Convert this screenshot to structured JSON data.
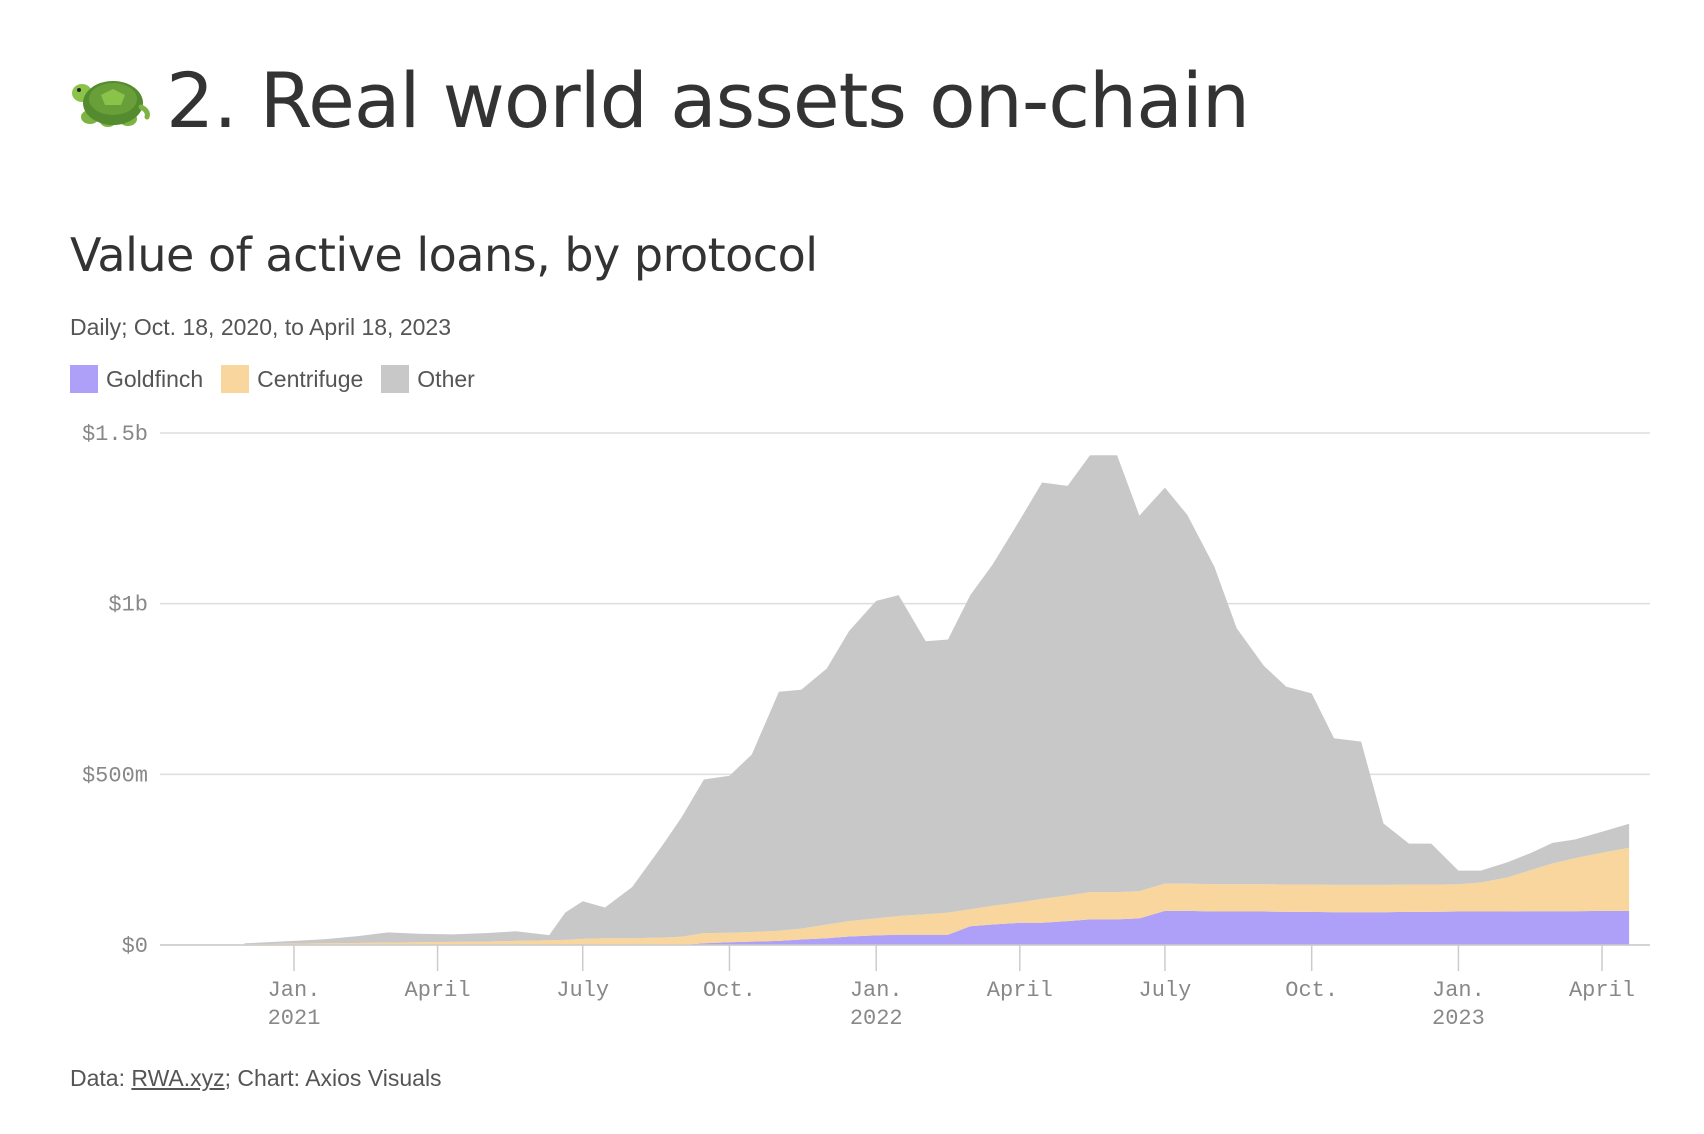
{
  "headline": {
    "emoji": "🐢",
    "text": "2. Real world assets on-chain"
  },
  "chart_data": {
    "type": "area",
    "stacked": true,
    "title": "Value of active loans, by protocol",
    "subtitle": "Daily; Oct. 18, 2020, to April 18, 2023",
    "ylim": [
      0,
      1500000000
    ],
    "y_ticks": [
      {
        "value": 0,
        "label": "$0"
      },
      {
        "value": 500000000,
        "label": "$500m"
      },
      {
        "value": 1000000000,
        "label": "$1b"
      },
      {
        "value": 1500000000,
        "label": "$1.5b"
      }
    ],
    "x_ticks": [
      {
        "date": "2021-01-01",
        "label": "Jan.",
        "label2": "2021"
      },
      {
        "date": "2021-04-01",
        "label": "April",
        "label2": ""
      },
      {
        "date": "2021-07-01",
        "label": "July",
        "label2": ""
      },
      {
        "date": "2021-10-01",
        "label": "Oct.",
        "label2": ""
      },
      {
        "date": "2022-01-01",
        "label": "Jan.",
        "label2": "2022"
      },
      {
        "date": "2022-04-01",
        "label": "April",
        "label2": ""
      },
      {
        "date": "2022-07-01",
        "label": "July",
        "label2": ""
      },
      {
        "date": "2022-10-01",
        "label": "Oct.",
        "label2": ""
      },
      {
        "date": "2023-01-01",
        "label": "Jan.",
        "label2": "2023"
      },
      {
        "date": "2023-04-01",
        "label": "April",
        "label2": ""
      }
    ],
    "x": [
      "2020-12-01",
      "2020-12-15",
      "2021-01-01",
      "2021-01-20",
      "2021-02-10",
      "2021-03-01",
      "2021-03-20",
      "2021-04-10",
      "2021-05-01",
      "2021-05-20",
      "2021-06-10",
      "2021-06-20",
      "2021-07-01",
      "2021-07-15",
      "2021-08-01",
      "2021-08-20",
      "2021-09-01",
      "2021-09-15",
      "2021-10-01",
      "2021-10-15",
      "2021-11-01",
      "2021-11-15",
      "2021-12-01",
      "2021-12-15",
      "2022-01-01",
      "2022-01-15",
      "2022-02-01",
      "2022-02-15",
      "2022-03-01",
      "2022-03-15",
      "2022-04-01",
      "2022-04-15",
      "2022-05-01",
      "2022-05-15",
      "2022-06-01",
      "2022-06-15",
      "2022-07-01",
      "2022-07-15",
      "2022-08-01",
      "2022-08-15",
      "2022-09-01",
      "2022-09-15",
      "2022-10-01",
      "2022-10-15",
      "2022-11-01",
      "2022-11-15",
      "2022-12-01",
      "2022-12-15",
      "2023-01-01",
      "2023-01-15",
      "2023-02-01",
      "2023-02-15",
      "2023-03-01",
      "2023-03-15",
      "2023-04-01",
      "2023-04-18"
    ],
    "series": [
      {
        "name": "Goldfinch",
        "color": "#ae9ff8",
        "values": [
          0,
          0,
          0,
          0,
          0,
          0,
          0,
          0,
          0,
          0,
          0,
          0,
          0,
          0,
          0,
          0,
          0,
          5000000,
          8000000,
          10000000,
          12000000,
          16000000,
          20000000,
          25000000,
          28000000,
          30000000,
          30000000,
          30000000,
          55000000,
          60000000,
          65000000,
          65000000,
          70000000,
          75000000,
          75000000,
          78000000,
          100000000,
          100000000,
          98000000,
          98000000,
          98000000,
          97000000,
          97000000,
          96000000,
          96000000,
          96000000,
          97000000,
          97000000,
          98000000,
          98000000,
          98000000,
          99000000,
          99000000,
          99000000,
          100000000,
          100000000
        ]
      },
      {
        "name": "Centrifuge",
        "color": "#f8d69e",
        "values": [
          2000000,
          3000000,
          4000000,
          5000000,
          6000000,
          7000000,
          8000000,
          9000000,
          10000000,
          12000000,
          14000000,
          15000000,
          18000000,
          20000000,
          20000000,
          22000000,
          24000000,
          30000000,
          28000000,
          28000000,
          30000000,
          32000000,
          40000000,
          45000000,
          50000000,
          55000000,
          60000000,
          65000000,
          50000000,
          55000000,
          60000000,
          70000000,
          75000000,
          80000000,
          80000000,
          80000000,
          80000000,
          80000000,
          80000000,
          80000000,
          80000000,
          80000000,
          80000000,
          80000000,
          80000000,
          80000000,
          80000000,
          80000000,
          80000000,
          85000000,
          100000000,
          120000000,
          140000000,
          155000000,
          170000000,
          185000000
        ]
      },
      {
        "name": "Other",
        "color": "#c8c8c8",
        "values": [
          3000000,
          5000000,
          8000000,
          12000000,
          20000000,
          30000000,
          25000000,
          22000000,
          25000000,
          28000000,
          15000000,
          80000000,
          110000000,
          90000000,
          150000000,
          270000000,
          350000000,
          450000000,
          460000000,
          520000000,
          700000000,
          700000000,
          750000000,
          850000000,
          930000000,
          940000000,
          800000000,
          800000000,
          920000000,
          1000000000,
          1120000000,
          1220000000,
          1200000000,
          1280000000,
          1280000000,
          1100000000,
          1160000000,
          1080000000,
          930000000,
          750000000,
          640000000,
          580000000,
          560000000,
          430000000,
          420000000,
          180000000,
          120000000,
          120000000,
          40000000,
          35000000,
          45000000,
          50000000,
          60000000,
          55000000,
          62000000,
          70000000
        ]
      }
    ]
  },
  "footer": {
    "prefix": "Data: ",
    "source_link": "RWA.xyz",
    "suffix": "; Chart: Axios Visuals"
  }
}
